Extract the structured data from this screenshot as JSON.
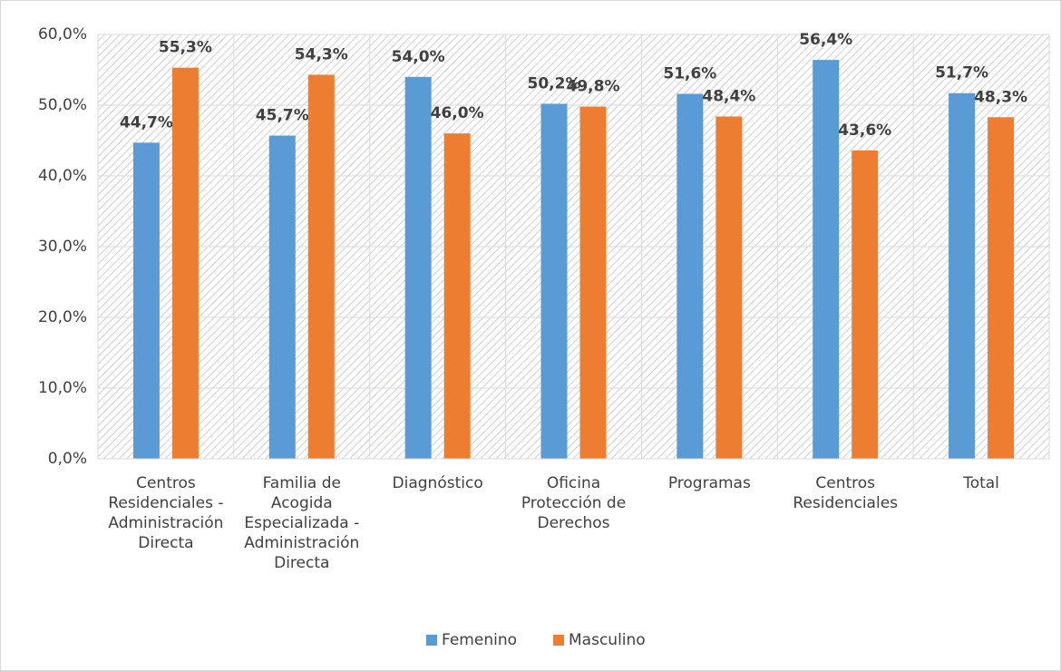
{
  "chart_data": {
    "type": "bar",
    "categories": [
      "Centros Residenciales - Administración Directa",
      "Familia de Acogida Especializada - Administración Directa",
      "Diagnóstico",
      "Oficina Protección de Derechos",
      "Programas",
      "Centros Residenciales",
      "Total"
    ],
    "series": [
      {
        "name": "Femenino",
        "color": "#5b9bd5",
        "values": [
          44.7,
          45.7,
          54.0,
          50.2,
          51.6,
          56.4,
          51.7
        ],
        "value_labels": [
          "44,7%",
          "45,7%",
          "54,0%",
          "50,2%",
          "51,6%",
          "56,4%",
          "51,7%"
        ]
      },
      {
        "name": "Masculino",
        "color": "#ed7d31",
        "values": [
          55.3,
          54.3,
          46.0,
          49.8,
          48.4,
          43.6,
          48.3
        ],
        "value_labels": [
          "55,3%",
          "54,3%",
          "46,0%",
          "49,8%",
          "48,4%",
          "43,6%",
          "48,3%"
        ]
      }
    ],
    "ylim": [
      0,
      60
    ],
    "yticks": [
      {
        "value": 0,
        "label": "0,0%"
      },
      {
        "value": 10,
        "label": "10,0%"
      },
      {
        "value": 20,
        "label": "20,0%"
      },
      {
        "value": 30,
        "label": "30,0%"
      },
      {
        "value": 40,
        "label": "40,0%"
      },
      {
        "value": 50,
        "label": "50,0%"
      },
      {
        "value": 60,
        "label": "60,0%"
      }
    ],
    "grid": true,
    "legend": "bottom"
  }
}
